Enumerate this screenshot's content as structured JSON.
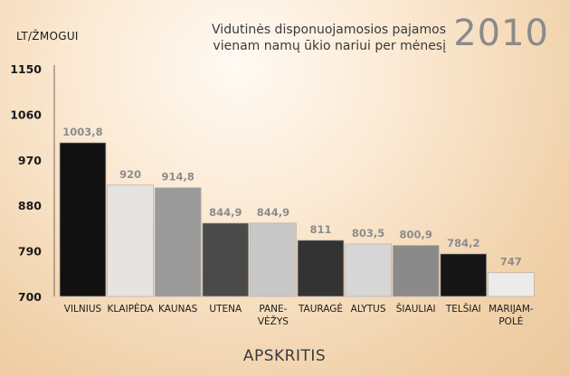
{
  "chart_data": {
    "type": "bar",
    "title": "Vidutinės disponuojamosios pajamos vienam namų ūkio nariui per mėnesį",
    "title_lines": [
      "Vidutinės disponuojamosios pajamos",
      "vienam namų ūkio nariui per mėnesį"
    ],
    "year": "2010",
    "ylabel": "LT/ŽMOGUI",
    "xlabel": "APSKRITIS",
    "ylim": [
      700,
      1150
    ],
    "yticks": [
      700,
      790,
      880,
      970,
      1060,
      1150
    ],
    "categories": [
      [
        "VILNIUS"
      ],
      [
        "KLAIPĖDA"
      ],
      [
        "KAUNAS"
      ],
      [
        "UTENA"
      ],
      [
        "PANE-",
        "VĖŽYS"
      ],
      [
        "TAURAGĖ"
      ],
      [
        "ALYTUS"
      ],
      [
        "ŠIAULIAI"
      ],
      [
        "TELŠIAI"
      ],
      [
        "MARIJAM-",
        "POLĖ"
      ]
    ],
    "values": [
      1003.8,
      920,
      914.8,
      844.9,
      844.9,
      811,
      803.5,
      800.9,
      784.2,
      747
    ],
    "value_labels": [
      "1003,8",
      "920",
      "914,8",
      "844,9",
      "844,9",
      "811",
      "803,5",
      "800,9",
      "784,2",
      "747"
    ],
    "bar_colors": [
      "#111111",
      "#e6e4e2",
      "#9a9a9a",
      "#4a4a4a",
      "#c8c8c8",
      "#333333",
      "#d6d6d6",
      "#8a8a8a",
      "#151515",
      "#ecebea"
    ],
    "grid": false,
    "legend": "none"
  }
}
